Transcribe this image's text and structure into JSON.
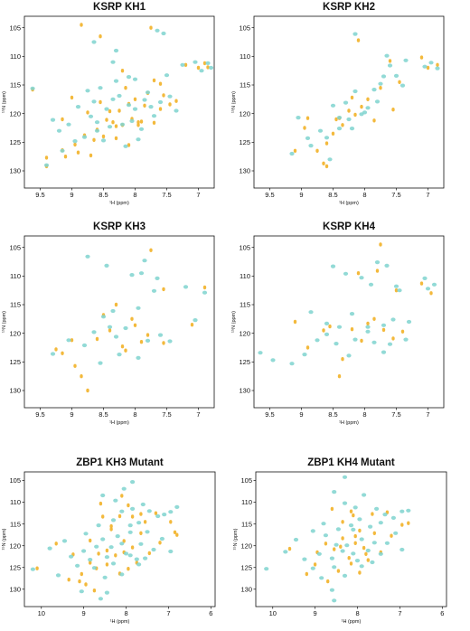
{
  "colors": {
    "reference": "#f2b531",
    "overlay": "#7fd3cf"
  },
  "chart_data": [
    {
      "type": "scatter",
      "title": "KSRP KH1",
      "xlabel": "¹H (ppm)",
      "ylabel": "¹⁵N (ppm)",
      "xlim": [
        9.75,
        6.75
      ],
      "ylim": [
        103,
        133
      ],
      "xticks": [
        "9.5",
        "9",
        "8.5",
        "8",
        "7.5",
        "7"
      ],
      "yticks": [
        "105",
        "110",
        "115",
        "120",
        "125",
        "130"
      ],
      "series": [
        {
          "x": [
            9.62,
            8.85,
            8.55,
            8.2,
            7.75,
            7.2,
            7.0,
            6.9,
            6.85,
            9.4,
            9.1,
            8.9,
            8.7,
            8.5,
            8.35,
            8.25,
            8.1,
            8.0,
            7.85,
            7.6,
            7.45,
            7.35,
            8.6,
            8.45,
            8.3,
            8.05,
            7.9,
            7.8,
            9.0,
            8.75,
            8.55,
            7.7,
            8.15,
            7.95,
            7.55,
            7.7,
            7.6,
            9.15,
            8.65,
            8.4,
            8.2,
            9.4,
            9.15,
            8.95,
            8.8,
            8.3,
            8.1,
            7.95
          ],
          "y": [
            115.8,
            104.5,
            106.5,
            112.5,
            105,
            111.5,
            112,
            111.2,
            111.9,
            129.2,
            127.5,
            126.8,
            127.3,
            124,
            121.5,
            119.5,
            118.3,
            117.5,
            118.6,
            119.2,
            118.4,
            117.8,
            122.8,
            121.1,
            122.2,
            120.9,
            121.4,
            116.4,
            117.2,
            119.8,
            118,
            114.2,
            115.5,
            121.5,
            116.8,
            121.6,
            114.8,
            121,
            124.6,
            119.6,
            122,
            127.7,
            126.4,
            125.4,
            123.8,
            124.3,
            125.5,
            122
          ]
        },
        {
          "x": [
            9.62,
            8.65,
            8.3,
            7.65,
            7.55,
            7.25,
            7.05,
            6.95,
            6.85,
            6.8,
            9.4,
            9.15,
            8.95,
            8.8,
            8.6,
            8.45,
            8.35,
            8.25,
            8.1,
            8.0,
            7.85,
            7.75,
            7.6,
            7.45,
            7.35,
            8.6,
            8.4,
            8.2,
            8.05,
            7.9,
            9.2,
            9.05,
            8.7,
            8.5,
            8.15,
            7.95,
            7.7,
            8.65,
            8.3,
            8.0,
            9.3,
            8.9,
            8.75,
            8.55,
            8.1,
            7.8,
            7.5,
            8.35
          ],
          "y": [
            115.6,
            107.5,
            109,
            105.5,
            106,
            111.5,
            111,
            112.5,
            111.2,
            112,
            129,
            126.5,
            124.8,
            124.1,
            121.5,
            119.2,
            117.5,
            116.9,
            118.5,
            119.2,
            117.6,
            118.8,
            118,
            117,
            119.5,
            123,
            122.3,
            121.9,
            121.3,
            122.7,
            123,
            121.9,
            120.5,
            124.7,
            125.7,
            124.5,
            120.4,
            117.9,
            114.3,
            114,
            121.1,
            118.8,
            116,
            115.5,
            113.6,
            116.3,
            113.3,
            111
          ]
        }
      ]
    },
    {
      "type": "scatter",
      "title": "KSRP KH2",
      "xlabel": "¹H (ppm)",
      "ylabel": "¹⁵N (ppm)",
      "xlim": [
        9.75,
        6.75
      ],
      "ylim": [
        103,
        133
      ],
      "xticks": [
        "9.5",
        "9",
        "8.5",
        "8",
        "7.5",
        "7"
      ],
      "yticks": [
        "105",
        "110",
        "115",
        "120",
        "125",
        "130"
      ],
      "series": [
        {
          "x": [
            8.6,
            8.1,
            7.6,
            7.0,
            7.1,
            6.85,
            8.9,
            8.75,
            8.6,
            8.35,
            8.25,
            8.05,
            7.95,
            7.75,
            9.1,
            8.95,
            8.5,
            8.4,
            8.15,
            8.2,
            7.45,
            7.55,
            7.85,
            8.65,
            8.45
          ],
          "y": [
            129.2,
            107.2,
            110.8,
            112,
            110.2,
            111.5,
            120.8,
            126.5,
            125.2,
            122,
            119.5,
            118.8,
            117.5,
            115.5,
            126.5,
            122.5,
            123.5,
            120.8,
            120.2,
            117.2,
            114.5,
            119.3,
            121.2,
            128.7,
            121
          ]
        },
        {
          "x": [
            8.55,
            8.15,
            7.65,
            7.05,
            6.95,
            6.85,
            8.9,
            8.7,
            8.6,
            8.4,
            8.25,
            8.05,
            7.95,
            7.75,
            9.15,
            8.85,
            8.5,
            8.4,
            8.2,
            7.7,
            7.6,
            7.5,
            7.85,
            8.3,
            8.15,
            8.0,
            7.8,
            7.35,
            7.4,
            9.05
          ],
          "y": [
            128,
            106.1,
            109.9,
            111.8,
            111.1,
            112.1,
            124.3,
            123,
            124.2,
            122.6,
            121,
            120.1,
            119,
            114.8,
            127,
            125.6,
            118.6,
            120.7,
            122.6,
            113.5,
            111.6,
            113.4,
            115.8,
            118.1,
            116.1,
            119.8,
            117.9,
            110.7,
            115.1,
            120.7
          ]
        }
      ]
    },
    {
      "type": "scatter",
      "title": "KSRP KH3",
      "xlabel": "¹H (ppm)",
      "ylabel": "¹⁵N (ppm)",
      "xlim": [
        9.75,
        6.75
      ],
      "ylim": [
        103,
        133
      ],
      "xticks": [
        "9.5",
        "9",
        "8.5",
        "8",
        "7.5",
        "7"
      ],
      "yticks": [
        "105",
        "110",
        "115",
        "120",
        "125",
        "130"
      ],
      "series": [
        {
          "x": [
            7.75,
            7.55,
            7.1,
            6.9,
            8.85,
            8.75,
            8.15,
            7.9,
            8.0,
            7.8,
            8.3,
            8.05,
            8.5,
            8.6,
            7.55,
            9.0,
            8.95,
            9.15,
            9.25,
            8.2,
            8.4
          ],
          "y": [
            105.5,
            112.3,
            118.5,
            112,
            127.5,
            130,
            123,
            121.5,
            118.6,
            120.3,
            115,
            117.5,
            116.8,
            121,
            121.7,
            121.2,
            125.7,
            123.5,
            122.8,
            122.3,
            119.5
          ]
        },
        {
          "x": [
            8.75,
            8.45,
            8.05,
            7.85,
            7.65,
            7.2,
            7.05,
            6.9,
            9.3,
            9.05,
            8.8,
            8.65,
            8.5,
            8.4,
            8.3,
            8.15,
            7.95,
            7.8,
            7.6,
            7.45,
            8.55,
            8.25,
            7.95,
            7.9,
            7.7,
            8.35
          ],
          "y": [
            106.6,
            108.2,
            109.8,
            107.3,
            110.4,
            111.9,
            117.7,
            112.9,
            123.6,
            121.2,
            122.1,
            119.8,
            117.1,
            118.9,
            120.6,
            119.1,
            115.6,
            121.3,
            120.3,
            121.4,
            125.2,
            123.7,
            124.3,
            109.5,
            112.6,
            116.1
          ]
        }
      ]
    },
    {
      "type": "scatter",
      "title": "KSRP KH4",
      "xlabel": "¹H (ppm)",
      "ylabel": "¹⁵N (ppm)",
      "xlim": [
        9.75,
        6.75
      ],
      "ylim": [
        103,
        133
      ],
      "xticks": [
        "9.5",
        "9",
        "8.5",
        "8",
        "7.5",
        "7"
      ],
      "yticks": [
        "105",
        "110",
        "115",
        "120",
        "125",
        "130"
      ],
      "series": [
        {
          "x": [
            7.75,
            7.5,
            7.1,
            6.95,
            8.4,
            8.2,
            7.95,
            7.85,
            8.05,
            7.7,
            8.1,
            8.35,
            8.55,
            8.65,
            7.55,
            7.4,
            8.9,
            9.1,
            7.8
          ],
          "y": [
            104.5,
            112.5,
            111.3,
            113,
            127.5,
            119.3,
            118.3,
            117.5,
            121.3,
            119.4,
            109.5,
            124.5,
            118.8,
            119.5,
            120.9,
            119.7,
            122.5,
            118,
            109.1
          ]
        },
        {
          "x": [
            8.5,
            8.3,
            8.05,
            7.9,
            7.8,
            7.65,
            7.5,
            7.45,
            7.05,
            7.0,
            6.9,
            9.65,
            9.45,
            9.15,
            8.95,
            8.75,
            8.6,
            8.45,
            8.25,
            8.15,
            7.95,
            7.85,
            7.7,
            7.55,
            7.35,
            8.85,
            8.6,
            8.4,
            8.2,
            7.95,
            7.7,
            7.6,
            7.3
          ],
          "y": [
            108.3,
            109.6,
            110.3,
            111.5,
            107.6,
            108.2,
            111.8,
            112.5,
            110.4,
            112.2,
            111.5,
            123.4,
            124.7,
            125.3,
            123.7,
            121.2,
            120.2,
            121.8,
            123.9,
            121.1,
            119.7,
            121.6,
            118.6,
            117.6,
            121.1,
            116.3,
            118.3,
            118.9,
            116.6,
            118.9,
            123.3,
            121.9,
            118
          ]
        }
      ]
    },
    {
      "type": "scatter",
      "title": "ZBP1 KH3 Mutant",
      "xlabel": "¹H (ppm)",
      "ylabel": "¹⁵N (ppm)",
      "xlim": [
        10.4,
        5.9
      ],
      "ylim": [
        103,
        134
      ],
      "xticks": [
        "10",
        "9",
        "8",
        "7",
        "6"
      ],
      "yticks": [
        "105",
        "110",
        "115",
        "120",
        "125",
        "130"
      ],
      "series": [
        {
          "x": [
            8.6,
            8.1,
            7.65,
            7.3,
            6.95,
            6.8,
            10.1,
            9.65,
            9.25,
            9.05,
            8.85,
            8.65,
            8.45,
            8.35,
            8.25,
            8.05,
            7.85,
            7.65,
            7.55,
            7.45,
            7.2,
            6.85,
            8.95,
            8.75,
            8.15,
            7.95,
            8.55,
            8.35,
            8.15,
            7.85,
            9.35,
            9.1,
            8.85,
            8.7,
            8.45,
            8.05,
            7.75,
            7.95
          ],
          "y": [
            110.3,
            108.5,
            112.7,
            112.5,
            114.5,
            117.5,
            125.2,
            119.5,
            122,
            126.5,
            118.8,
            121.8,
            121.1,
            116.2,
            122.2,
            118.9,
            120.4,
            117.1,
            114.5,
            121.7,
            119.3,
            116.9,
            128.9,
            130.3,
            126.4,
            125.3,
            113.3,
            115.5,
            113.2,
            113.3,
            127.8,
            128.2,
            123.9,
            125.2,
            124.3,
            121.5,
            123.9,
            110.7
          ]
        },
        {
          "x": [
            8.55,
            8.25,
            8.05,
            7.85,
            7.6,
            7.45,
            7.25,
            7.1,
            6.95,
            6.8,
            10.2,
            9.8,
            9.45,
            9.3,
            9.15,
            9.0,
            8.85,
            8.7,
            8.55,
            8.45,
            8.35,
            8.2,
            8.1,
            8.0,
            7.9,
            7.75,
            7.65,
            7.5,
            7.35,
            7.15,
            6.95,
            8.75,
            8.5,
            8.3,
            8.1,
            7.9,
            7.7,
            7.55,
            8.95,
            8.65,
            8.3,
            8.1,
            7.9,
            7.7,
            7.85,
            8.45,
            9.6,
            9.05,
            8.6
          ],
          "y": [
            108.4,
            109.6,
            106.9,
            111.5,
            110.5,
            112,
            113.2,
            112.8,
            112.2,
            111.1,
            125.4,
            120.6,
            118.9,
            122.5,
            124.6,
            121.2,
            123.2,
            120.2,
            118.5,
            122.6,
            120.3,
            117.8,
            119.5,
            121.8,
            116.9,
            123.1,
            119.6,
            116.8,
            120.9,
            118.4,
            121.3,
            125.1,
            127.3,
            124.1,
            126.6,
            122.2,
            124.3,
            122.9,
            117.2,
            115.3,
            114.1,
            112.1,
            115.3,
            114.7,
            105.3,
            130.8,
            126.8,
            130.5,
            132.2
          ]
        }
      ]
    },
    {
      "type": "scatter",
      "title": "ZBP1 KH4 Mutant",
      "xlabel": "¹H (ppm)",
      "ylabel": "¹⁵N (ppm)",
      "xlim": [
        10.4,
        5.9
      ],
      "ylim": [
        103,
        134
      ],
      "xticks": [
        "10",
        "9",
        "8",
        "7",
        "6"
      ],
      "yticks": [
        "105",
        "110",
        "115",
        "120",
        "125",
        "130"
      ],
      "series": [
        {
          "x": [
            8.6,
            8.1,
            7.65,
            7.3,
            6.95,
            6.8,
            9.2,
            8.95,
            8.75,
            8.55,
            8.35,
            8.2,
            8.05,
            7.85,
            7.6,
            7.45,
            7.2,
            8.45,
            8.15,
            7.95,
            7.75,
            8.35,
            8.15,
            7.95,
            9.0,
            8.7,
            8.4,
            8.05,
            7.8,
            9.6
          ],
          "y": [
            111.5,
            113,
            112.7,
            112.3,
            115.2,
            114.8,
            126.5,
            121.5,
            119.5,
            120.8,
            118.3,
            122.8,
            117.8,
            120.5,
            117.1,
            121.5,
            117.7,
            125.8,
            124.1,
            126.2,
            123.3,
            114.5,
            112.1,
            116.5,
            124.3,
            128.2,
            120.2,
            119.4,
            121.9,
            120.7
          ]
        },
        {
          "x": [
            8.55,
            8.3,
            8.05,
            7.85,
            7.55,
            7.35,
            7.15,
            6.95,
            6.8,
            9.7,
            9.45,
            9.25,
            9.05,
            8.9,
            8.75,
            8.6,
            8.5,
            8.35,
            8.25,
            8.1,
            8.0,
            7.9,
            7.75,
            7.6,
            7.45,
            7.3,
            7.1,
            6.95,
            10.15,
            8.85,
            8.55,
            8.3,
            8.1,
            7.9,
            7.65,
            9.05,
            8.8,
            8.45,
            8.15,
            7.95,
            7.7,
            7.45,
            8.3,
            8.6,
            8.55
          ],
          "y": [
            107.6,
            110.2,
            111.2,
            108.3,
            111.5,
            112.8,
            113.6,
            112.1,
            111.9,
            121.4,
            118.6,
            123.1,
            125.2,
            121.9,
            117.6,
            122.9,
            119.8,
            121.2,
            119.9,
            116.3,
            123.4,
            118.5,
            121.1,
            119.3,
            121.9,
            119.4,
            117.1,
            120.9,
            125.3,
            127.4,
            124.9,
            126.9,
            121.8,
            124.7,
            123.8,
            116.6,
            114.9,
            116.2,
            115.3,
            113.9,
            115.6,
            114.7,
            104.2,
            130.2,
            132.6
          ]
        }
      ]
    }
  ]
}
